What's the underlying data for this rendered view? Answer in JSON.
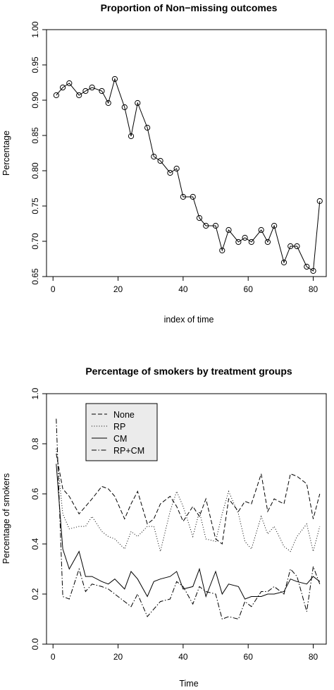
{
  "chart_data": [
    {
      "type": "line",
      "title": "Proportion of Non−missing outcomes",
      "xlabel": "index of time",
      "ylabel": "Percentage",
      "xlim": [
        -2,
        84
      ],
      "ylim": [
        0.65,
        1.0
      ],
      "xticks": [
        0,
        20,
        40,
        60,
        80
      ],
      "yticks": [
        0.65,
        0.7,
        0.75,
        0.8,
        0.85,
        0.9,
        0.95,
        1.0
      ],
      "ytick_labels": [
        "0.65",
        "0.70",
        "0.75",
        "0.80",
        "0.85",
        "0.90",
        "0.95",
        "1.00"
      ],
      "markers": "open-circle",
      "grid": false,
      "x": [
        1,
        3,
        5,
        8,
        10,
        12,
        15,
        17,
        19,
        22,
        24,
        26,
        29,
        31,
        33,
        36,
        38,
        40,
        43,
        45,
        47,
        50,
        52,
        54,
        57,
        59,
        61,
        64,
        66,
        68,
        71,
        73,
        75,
        78,
        80,
        82
      ],
      "y": [
        0.907,
        0.918,
        0.924,
        0.907,
        0.913,
        0.918,
        0.913,
        0.896,
        0.93,
        0.89,
        0.849,
        0.896,
        0.861,
        0.82,
        0.814,
        0.797,
        0.803,
        0.763,
        0.763,
        0.733,
        0.722,
        0.722,
        0.687,
        0.716,
        0.699,
        0.705,
        0.699,
        0.716,
        0.699,
        0.722,
        0.67,
        0.693,
        0.693,
        0.664,
        0.658,
        0.757
      ]
    },
    {
      "type": "line",
      "title": "Percentage of smokers by treatment groups",
      "xlabel": "Time",
      "ylabel": "Percentage of smokers",
      "xlim": [
        -2,
        84
      ],
      "ylim": [
        0.0,
        1.0
      ],
      "xticks": [
        0,
        20,
        40,
        60,
        80
      ],
      "yticks": [
        0.0,
        0.2,
        0.4,
        0.6,
        0.8,
        1.0
      ],
      "ytick_labels": [
        "0.0",
        "0.2",
        "0.4",
        "0.6",
        "0.8",
        "1.0"
      ],
      "legend_position": "top-left",
      "grid": false,
      "x": [
        1,
        3,
        5,
        8,
        10,
        12,
        15,
        17,
        19,
        22,
        24,
        26,
        29,
        31,
        33,
        36,
        38,
        40,
        43,
        45,
        47,
        50,
        52,
        54,
        57,
        59,
        61,
        64,
        66,
        68,
        71,
        73,
        75,
        78,
        80,
        82
      ],
      "series": [
        {
          "name": "None",
          "dash": "dashed",
          "values": [
            0.76,
            0.62,
            0.59,
            0.52,
            0.55,
            0.58,
            0.63,
            0.62,
            0.59,
            0.5,
            0.56,
            0.61,
            0.48,
            0.5,
            0.56,
            0.59,
            0.55,
            0.49,
            0.55,
            0.51,
            0.58,
            0.42,
            0.4,
            0.58,
            0.53,
            0.57,
            0.56,
            0.68,
            0.53,
            0.58,
            0.56,
            0.68,
            0.67,
            0.64,
            0.5,
            0.6
          ]
        },
        {
          "name": "RP",
          "dash": "dotted",
          "values": [
            0.78,
            0.52,
            0.46,
            0.47,
            0.47,
            0.51,
            0.45,
            0.43,
            0.42,
            0.38,
            0.45,
            0.43,
            0.47,
            0.47,
            0.37,
            0.53,
            0.61,
            0.55,
            0.43,
            0.53,
            0.42,
            0.41,
            0.52,
            0.61,
            0.52,
            0.41,
            0.38,
            0.51,
            0.44,
            0.47,
            0.39,
            0.37,
            0.43,
            0.48,
            0.37,
            0.47
          ]
        },
        {
          "name": "CM",
          "dash": "solid",
          "values": [
            0.72,
            0.38,
            0.3,
            0.37,
            0.27,
            0.27,
            0.25,
            0.24,
            0.26,
            0.22,
            0.29,
            0.26,
            0.19,
            0.25,
            0.26,
            0.27,
            0.29,
            0.22,
            0.23,
            0.3,
            0.19,
            0.29,
            0.2,
            0.24,
            0.23,
            0.18,
            0.19,
            0.19,
            0.2,
            0.2,
            0.21,
            0.26,
            0.25,
            0.24,
            0.27,
            0.25
          ]
        },
        {
          "name": "RP+CM",
          "dash": "dashdot",
          "values": [
            0.9,
            0.19,
            0.18,
            0.3,
            0.21,
            0.24,
            0.23,
            0.22,
            0.2,
            0.17,
            0.15,
            0.2,
            0.11,
            0.14,
            0.17,
            0.18,
            0.25,
            0.23,
            0.16,
            0.23,
            0.21,
            0.2,
            0.1,
            0.11,
            0.1,
            0.17,
            0.15,
            0.21,
            0.21,
            0.23,
            0.2,
            0.3,
            0.27,
            0.13,
            0.31,
            0.24
          ]
        }
      ]
    }
  ]
}
